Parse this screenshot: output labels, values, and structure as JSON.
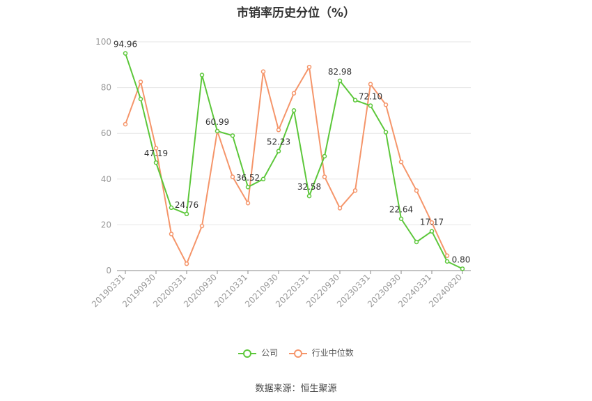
{
  "chart_data": {
    "type": "line",
    "title": "市销率历史分位（%）",
    "x": [
      "20190331",
      "20190630",
      "20190930",
      "20191231",
      "20200331",
      "20200630",
      "20200930",
      "20201231",
      "20210331",
      "20210630",
      "20210930",
      "20211231",
      "20220331",
      "20220630",
      "20220930",
      "20221231",
      "20230331",
      "20230630",
      "20230930",
      "20231231",
      "20240331",
      "20240630",
      "20240820"
    ],
    "x_tick_labels": [
      "20190331",
      "20190930",
      "20200331",
      "20200930",
      "20210331",
      "20210930",
      "20220331",
      "20220930",
      "20230331",
      "20230930",
      "20240331",
      "20240820"
    ],
    "ylim": [
      0,
      100
    ],
    "yticks": [
      0,
      20,
      40,
      60,
      80,
      100
    ],
    "grid": true,
    "legend_position": "bottom",
    "series": [
      {
        "name": "公司",
        "color": "#5cc73a",
        "values": [
          94.96,
          75,
          47.19,
          27.5,
          24.76,
          85.5,
          60.99,
          59,
          36.52,
          40,
          52.23,
          70,
          32.58,
          50,
          82.98,
          74.5,
          72.1,
          60.5,
          22.64,
          12.5,
          17.17,
          4,
          0.8
        ],
        "labels": [
          "94.96",
          "",
          "47.19",
          "",
          "24.76",
          "",
          "60.99",
          "",
          "36.52",
          "",
          "52.23",
          "",
          "32.58",
          "",
          "82.98",
          "",
          "72.10",
          "",
          "22.64",
          "",
          "17.17",
          "",
          "0.80"
        ]
      },
      {
        "name": "行业中位数",
        "color": "#f5956a",
        "values": [
          64,
          82.5,
          53.5,
          16,
          3,
          19.5,
          61,
          41,
          29.5,
          87,
          61.5,
          77.5,
          89,
          41,
          27.3,
          35,
          81.5,
          72.5,
          47.5,
          35,
          21,
          6.5,
          null
        ],
        "labels": []
      }
    ]
  },
  "source_text": "数据来源：恒生聚源"
}
